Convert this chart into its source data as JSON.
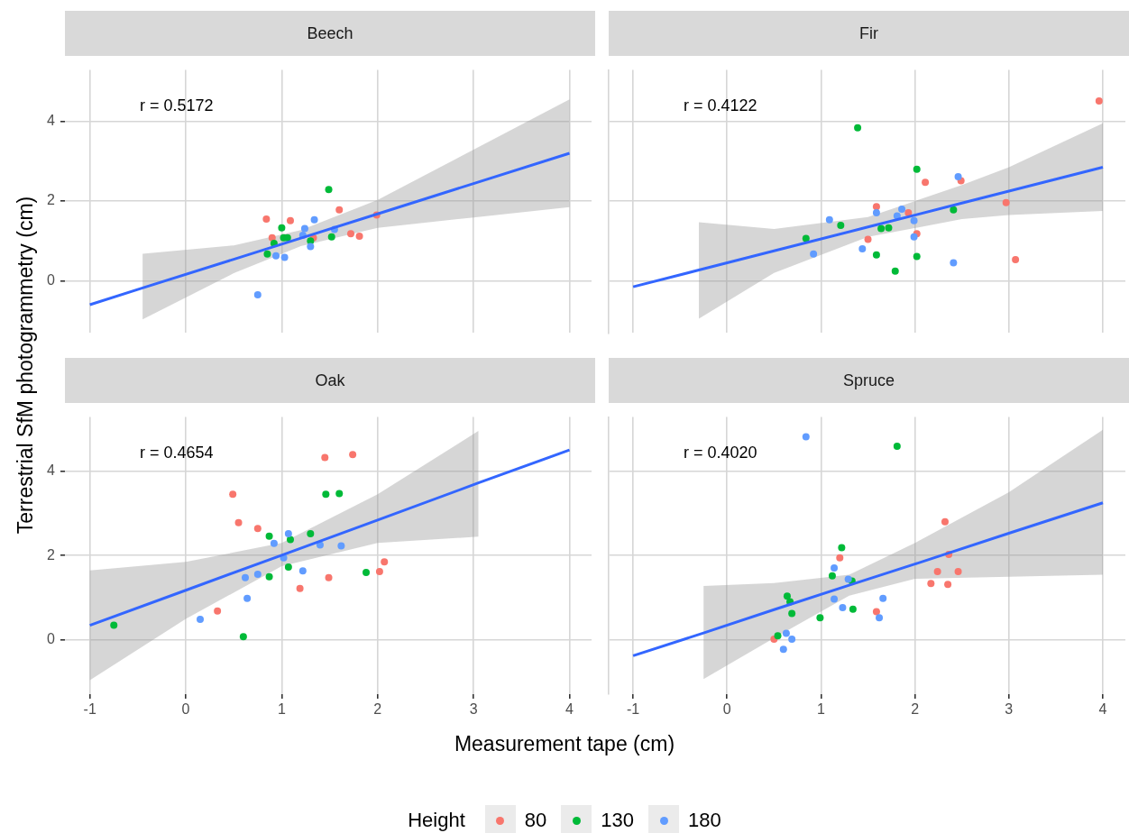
{
  "chart_data": [
    {
      "type": "scatter",
      "title": "Beech",
      "xlabel": "Measurement tape (cm)",
      "ylabel": "Terrestrial SfM photogrammetry (cm)",
      "legend_title": "Height",
      "legend": "bottom",
      "marker": "circle",
      "grid": true,
      "tick_labels": "y",
      "annotations": [
        "r = 0.5172"
      ],
      "xlim": [
        -1.26,
        4.23
      ],
      "xticks": [
        -1,
        0,
        1,
        2,
        3,
        4
      ],
      "ylim": [
        -1.31,
        5.29
      ],
      "yticks": [
        0,
        2,
        4
      ],
      "series": [
        {
          "name": "80",
          "color": "#f8766d",
          "x": [
            0.84,
            0.9,
            1.09,
            1.6,
            1.99,
            1.72,
            1.81,
            1.33
          ],
          "values": [
            1.55,
            1.08,
            1.51,
            1.78,
            1.65,
            1.18,
            1.12,
            1.08
          ]
        },
        {
          "name": "130",
          "color": "#00ba38",
          "x": [
            1.49,
            1.0,
            0.85,
            0.92,
            1.02,
            1.06,
            1.52,
            1.3
          ],
          "values": [
            2.29,
            1.33,
            0.67,
            0.94,
            1.08,
            1.08,
            1.1,
            1.0
          ]
        },
        {
          "name": "180",
          "color": "#619cff",
          "x": [
            0.75,
            0.94,
            1.03,
            1.34,
            1.24,
            1.3,
            1.55,
            1.22
          ],
          "values": [
            -0.35,
            0.63,
            0.59,
            1.53,
            1.31,
            0.86,
            1.29,
            1.14
          ]
        },
        {
          "type": "line",
          "marker": "none",
          "color": "#3366ff",
          "x": [
            -1,
            -0.45,
            0.5,
            1.2,
            2,
            3,
            4
          ],
          "values": [
            -0.6,
            -0.18,
            0.54,
            1.07,
            1.68,
            2.44,
            3.2
          ],
          "lower": [
            null,
            -0.97,
            0.19,
            0.87,
            1.33,
            1.59,
            1.85
          ],
          "upper": [
            null,
            0.68,
            0.89,
            1.27,
            2.03,
            3.29,
            4.55
          ]
        }
      ]
    },
    {
      "type": "scatter",
      "title": "Fir",
      "marker": "circle",
      "grid": true,
      "tick_labels": false,
      "annotations": [
        "r = 0.4122"
      ],
      "xlim": [
        -1.26,
        4.24
      ],
      "xticks": [
        -1,
        0,
        1,
        2,
        3,
        4
      ],
      "ylim": [
        -1.31,
        5.29
      ],
      "yticks": [
        0,
        2,
        4
      ],
      "series": [
        {
          "color": "#f8766d",
          "x": [
            3.96,
            2.11,
            2.49,
            1.59,
            2.97,
            1.93,
            1.5,
            2.02,
            3.07
          ],
          "values": [
            4.51,
            2.47,
            2.51,
            1.86,
            1.96,
            1.71,
            1.04,
            1.18,
            0.53
          ]
        },
        {
          "color": "#00ba38",
          "x": [
            1.39,
            2.02,
            2.41,
            1.21,
            0.84,
            1.64,
            1.72,
            1.59,
            2.02,
            1.79
          ],
          "values": [
            3.84,
            2.8,
            1.78,
            1.39,
            1.06,
            1.31,
            1.33,
            0.65,
            0.61,
            0.24
          ]
        },
        {
          "color": "#619cff",
          "x": [
            2.46,
            1.09,
            0.92,
            1.44,
            1.59,
            1.86,
            1.81,
            1.99,
            1.99,
            2.41
          ],
          "values": [
            2.61,
            1.53,
            0.67,
            0.8,
            1.71,
            1.8,
            1.63,
            1.51,
            1.1,
            0.45
          ]
        },
        {
          "type": "line",
          "marker": "none",
          "color": "#3366ff",
          "x": [
            -1,
            -0.3,
            0.5,
            1.5,
            2.5,
            3,
            4
          ],
          "values": [
            -0.15,
            0.27,
            0.75,
            1.35,
            1.95,
            2.25,
            2.85
          ],
          "lower": [
            null,
            -0.95,
            0.2,
            1.1,
            1.55,
            1.65,
            1.75
          ],
          "upper": [
            null,
            1.47,
            1.3,
            1.6,
            2.4,
            2.85,
            3.95
          ]
        }
      ]
    },
    {
      "type": "scatter",
      "title": "Oak",
      "marker": "circle",
      "grid": true,
      "annotations": [
        "r = 0.4654"
      ],
      "xlim": [
        -1.26,
        4.23
      ],
      "xticks": [
        -1,
        0,
        1,
        2,
        3,
        4
      ],
      "ylim": [
        -1.28,
        5.28
      ],
      "yticks": [
        0,
        2,
        4
      ],
      "series": [
        {
          "color": "#f8766d",
          "x": [
            0.49,
            0.55,
            0.75,
            1.45,
            1.74,
            0.33,
            1.19,
            1.49,
            2.02,
            2.07
          ],
          "values": [
            3.45,
            2.78,
            2.64,
            4.32,
            4.39,
            0.69,
            1.22,
            1.48,
            1.62,
            1.85
          ]
        },
        {
          "color": "#00ba38",
          "x": [
            -0.75,
            0.6,
            0.87,
            0.87,
            1.09,
            1.07,
            1.3,
            1.46,
            1.6,
            1.88
          ],
          "values": [
            0.35,
            0.08,
            2.46,
            1.5,
            2.38,
            1.73,
            2.52,
            3.45,
            3.47,
            1.6
          ]
        },
        {
          "color": "#619cff",
          "x": [
            0.15,
            0.64,
            0.62,
            0.75,
            0.92,
            1.07,
            1.02,
            1.4,
            1.62,
            1.22
          ],
          "values": [
            0.49,
            0.99,
            1.48,
            1.56,
            2.29,
            2.52,
            1.95,
            2.25,
            2.23,
            1.64
          ]
        },
        {
          "type": "line",
          "marker": "none",
          "color": "#3366ff",
          "x": [
            -1,
            0,
            1,
            2,
            3.05,
            4
          ],
          "values": [
            0.35,
            1.18,
            2.01,
            2.84,
            3.72,
            4.5
          ],
          "lower": [
            -0.95,
            0.5,
            1.75,
            2.3,
            2.45,
            null
          ],
          "upper": [
            1.65,
            1.85,
            2.3,
            3.45,
            4.95,
            null
          ]
        }
      ]
    },
    {
      "type": "scatter",
      "title": "Spruce",
      "marker": "circle",
      "grid": true,
      "tick_labels": "x",
      "annotations": [
        "r = 0.4020"
      ],
      "xlim": [
        -1.26,
        4.24
      ],
      "xticks": [
        -1,
        0,
        1,
        2,
        3,
        4
      ],
      "ylim": [
        -1.28,
        5.28
      ],
      "yticks": [
        0,
        2,
        4
      ],
      "series": [
        {
          "color": "#f8766d",
          "x": [
            2.32,
            1.2,
            2.36,
            2.24,
            2.46,
            2.17,
            2.35,
            1.59,
            0.5
          ],
          "values": [
            2.8,
            1.95,
            2.03,
            1.62,
            1.62,
            1.34,
            1.32,
            0.67,
            0.02
          ]
        },
        {
          "color": "#00ba38",
          "x": [
            1.81,
            1.22,
            1.12,
            0.64,
            0.67,
            0.69,
            0.99,
            1.34,
            1.33,
            0.54
          ],
          "values": [
            4.59,
            2.19,
            1.52,
            1.04,
            0.91,
            0.63,
            0.53,
            0.73,
            1.4,
            0.1
          ]
        },
        {
          "color": "#619cff",
          "x": [
            0.84,
            1.14,
            1.29,
            1.14,
            1.23,
            1.66,
            1.62,
            0.63,
            0.69,
            0.6
          ],
          "values": [
            4.81,
            1.71,
            1.44,
            0.97,
            0.77,
            0.99,
            0.53,
            0.16,
            0.02,
            -0.22
          ]
        },
        {
          "type": "line",
          "marker": "none",
          "color": "#3366ff",
          "x": [
            -1,
            -0.25,
            0.5,
            1.3,
            2,
            3,
            4
          ],
          "values": [
            -0.37,
            0.17,
            0.72,
            1.3,
            1.8,
            2.53,
            3.25
          ],
          "lower": [
            null,
            -0.92,
            0.05,
            1.05,
            1.45,
            1.5,
            1.55
          ],
          "upper": [
            null,
            1.28,
            1.35,
            1.55,
            2.3,
            3.5,
            4.98
          ]
        }
      ]
    }
  ]
}
